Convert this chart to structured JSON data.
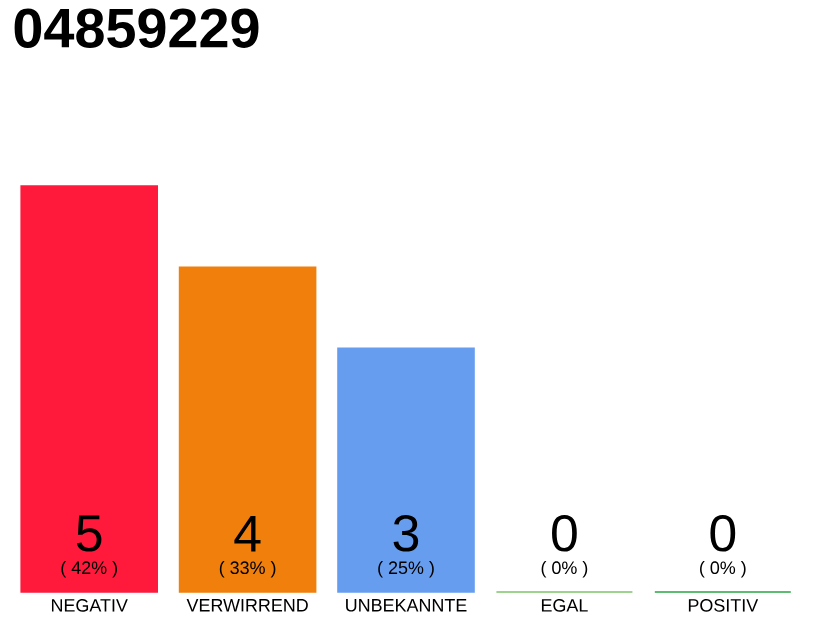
{
  "chart_data": {
    "type": "bar",
    "title": "04859229",
    "categories": [
      "NEGATIV",
      "VERWIRREND",
      "UNBEKANNTE",
      "EGAL",
      "POSITIV"
    ],
    "values": [
      5,
      4,
      3,
      0,
      0
    ],
    "colors": [
      "#ff1a3c",
      "#f07f0c",
      "#679def",
      "#7dc36b",
      "#27a844"
    ],
    "ylim": [
      0,
      5
    ],
    "tick_labels": "x",
    "data_labels": true,
    "annotations": [
      "( 42% )",
      "( 33% )",
      "( 25% )",
      "( 0% )",
      "( 0% )"
    ]
  }
}
